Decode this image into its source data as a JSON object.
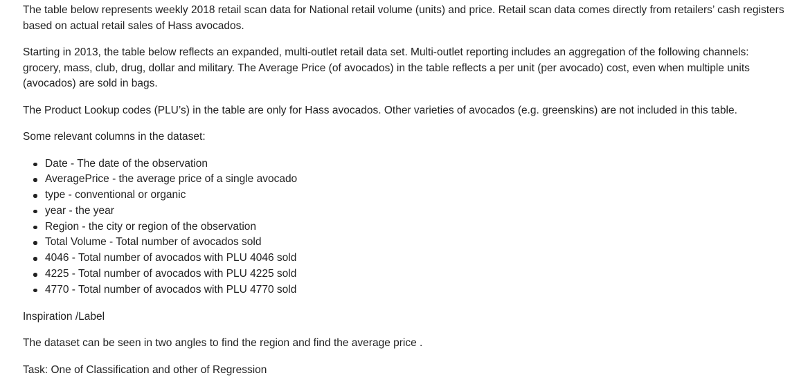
{
  "document": {
    "paragraphs_top": [
      "The table below represents weekly 2018 retail scan data for National retail volume (units) and price. Retail scan data comes directly from retailers’ cash registers based on actual retail sales of Hass avocados.",
      "Starting in 2013, the table below reflects an expanded, multi-outlet retail data set. Multi-outlet reporting includes an aggregation of the following channels: grocery, mass, club, drug, dollar and military. The Average Price (of avocados) in the table reflects a per unit (per avocado) cost, even when multiple units (avocados) are sold in bags.",
      "The Product Lookup codes (PLU’s) in the table are only for Hass avocados. Other varieties of avocados (e.g. greenskins) are not included in this table.",
      "Some relevant columns in the dataset:"
    ],
    "columns": [
      "Date - The date of the observation",
      "AveragePrice - the average price of a single avocado",
      "type - conventional or organic",
      "year - the year",
      "Region - the city or region of the observation",
      "Total Volume - Total number of avocados sold",
      "4046 - Total number of avocados with PLU 4046 sold",
      "4225 - Total number of avocados with PLU 4225 sold",
      "4770 - Total number of avocados with PLU 4770 sold"
    ],
    "paragraphs_bottom": [
      "Inspiration /Label",
      "The dataset can be seen in two angles to find the region and find the average price .",
      "Task: One of Classification and other of Regression"
    ]
  }
}
